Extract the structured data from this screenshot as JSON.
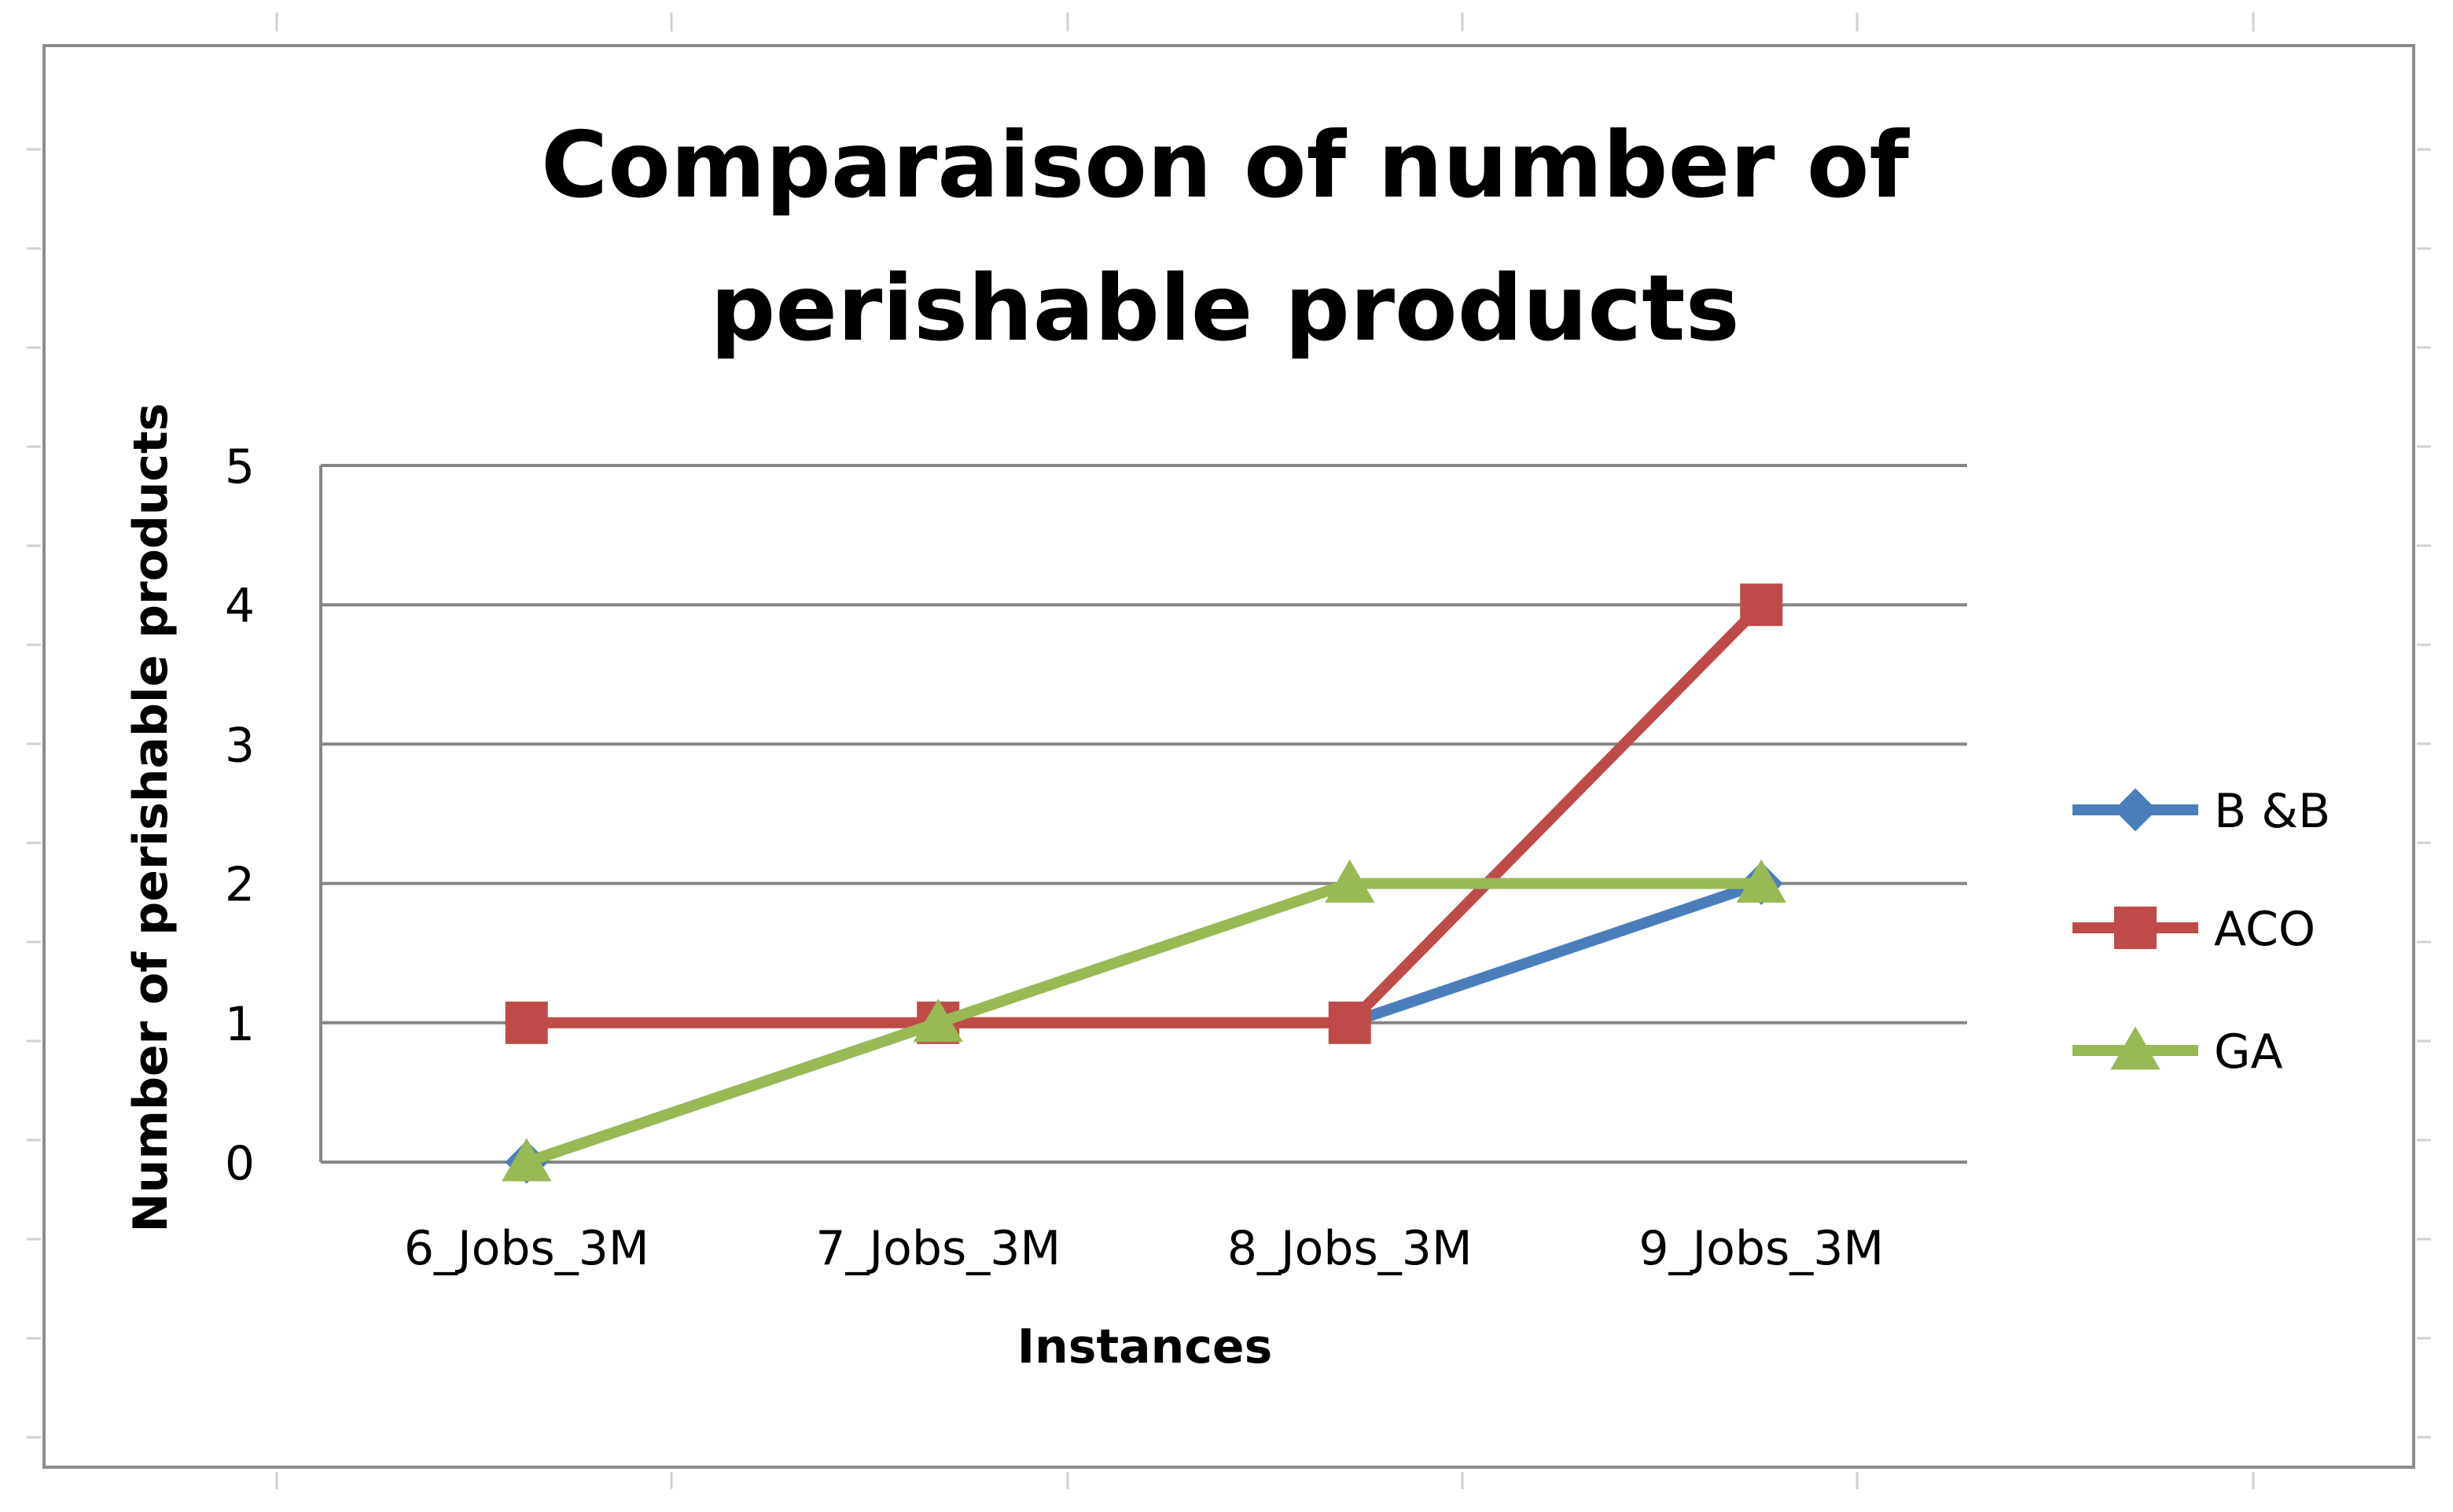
{
  "chart_data": {
    "type": "line",
    "title_lines": [
      "Comparaison of number of",
      "perishable products"
    ],
    "xlabel": "Instances",
    "ylabel": "Number of perishable products",
    "categories": [
      "6_Jobs_3M",
      "7_Jobs_3M",
      "8_Jobs_3M",
      "9_Jobs_3M"
    ],
    "ylim": [
      0,
      5
    ],
    "yticks": [
      "0",
      "1",
      "2",
      "3",
      "4",
      "5"
    ],
    "grid": true,
    "legend_position": "right",
    "series": [
      {
        "name": "B &B",
        "values": [
          0,
          1,
          1,
          2
        ],
        "color": "#4A7EBB",
        "marker": "diamond"
      },
      {
        "name": "ACO",
        "values": [
          1,
          1,
          1,
          4
        ],
        "color": "#BE4B48",
        "marker": "square"
      },
      {
        "name": "GA",
        "values": [
          0,
          1,
          2,
          2
        ],
        "color": "#98B954",
        "marker": "triangle"
      }
    ]
  }
}
